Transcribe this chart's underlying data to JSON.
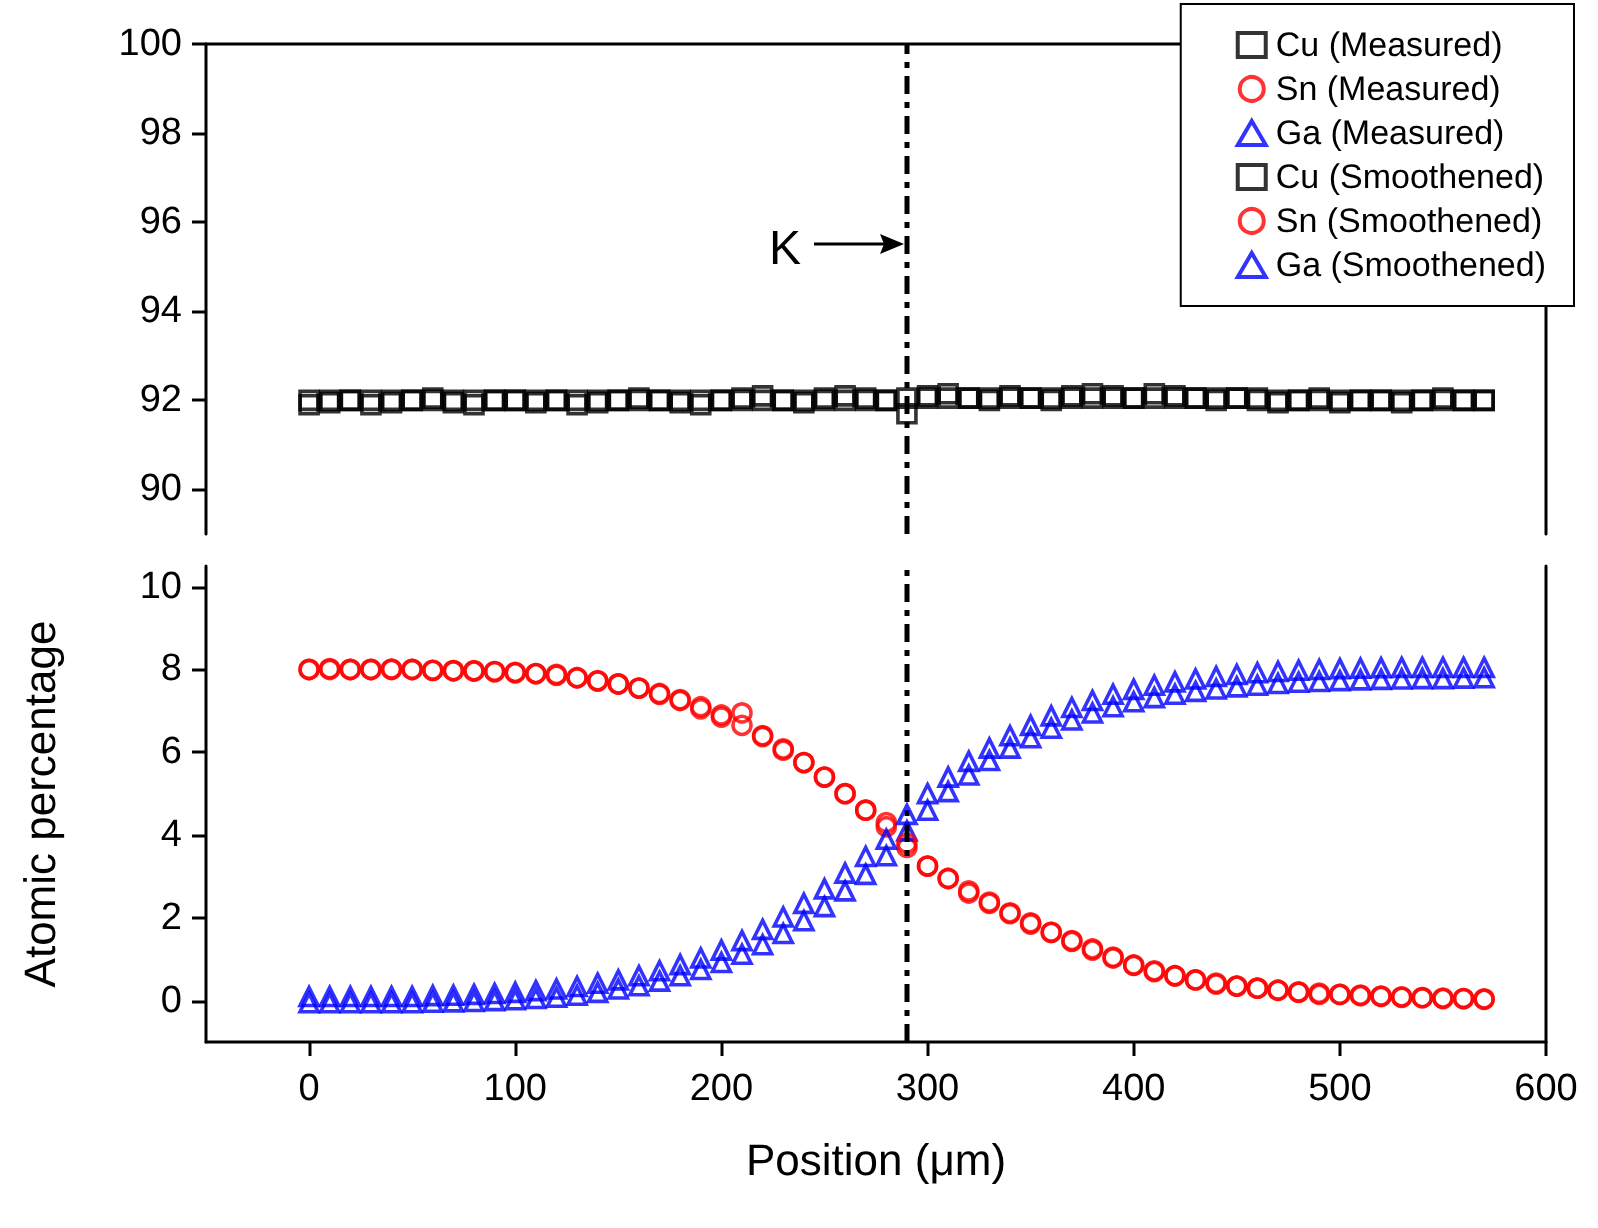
{
  "chart_data": [
    {
      "type": "scatter",
      "ylim": [
        89,
        100
      ],
      "yticks": [
        90,
        92,
        94,
        96,
        98,
        100
      ],
      "xlim": [
        -50,
        600
      ],
      "tick_labels": "y",
      "grid": false,
      "legend": "top right",
      "x": [
        0,
        10,
        20,
        30,
        40,
        50,
        60,
        70,
        80,
        90,
        100,
        110,
        120,
        130,
        140,
        150,
        160,
        170,
        180,
        190,
        200,
        210,
        220,
        230,
        240,
        250,
        260,
        270,
        280,
        290,
        300,
        310,
        320,
        330,
        340,
        350,
        360,
        370,
        380,
        390,
        400,
        410,
        420,
        430,
        440,
        450,
        460,
        470,
        480,
        490,
        500,
        510,
        520,
        530,
        540,
        550,
        560,
        570
      ],
      "ref_lines": [
        {
          "axis": "x",
          "value": 290,
          "color": "#000000",
          "line_style": "dashed"
        }
      ],
      "annotations": [
        {
          "text": "K",
          "x": 290,
          "y": 95.5
        }
      ],
      "series": [
        {
          "name": "Cu (Measured)",
          "color": "#000000",
          "marker": "square",
          "values": [
            91.9,
            91.95,
            92.0,
            91.9,
            91.95,
            92.0,
            92.05,
            91.95,
            91.9,
            92.0,
            92.0,
            91.95,
            92.0,
            91.9,
            91.95,
            92.0,
            92.05,
            92.0,
            91.95,
            91.9,
            92.0,
            92.05,
            92.1,
            92.0,
            91.95,
            92.05,
            92.1,
            92.05,
            92.0,
            91.7,
            92.1,
            92.15,
            92.05,
            92.0,
            92.1,
            92.05,
            92.0,
            92.1,
            92.15,
            92.1,
            92.05,
            92.15,
            92.1,
            92.05,
            92.0,
            92.05,
            92.0,
            91.95,
            92.0,
            92.05,
            91.95,
            92.0,
            92.0,
            91.95,
            92.0,
            92.05,
            92.0,
            92.0
          ]
        },
        {
          "name": "Sn (Measured)",
          "color": "#ff0000",
          "marker": "circle",
          "values": [
            null,
            null,
            null,
            null,
            null,
            null,
            null,
            null,
            null,
            null,
            null,
            null,
            null,
            null,
            null,
            null,
            null,
            null,
            null,
            null,
            null,
            null,
            null,
            null,
            null,
            null,
            null,
            null,
            null,
            null,
            null,
            null,
            null,
            null,
            null,
            null,
            null,
            null,
            null,
            null,
            null,
            null,
            null,
            null,
            null,
            null,
            null,
            null,
            null,
            null,
            null,
            null,
            null,
            null,
            null,
            null,
            null,
            null
          ]
        },
        {
          "name": "Ga (Measured)",
          "color": "#0000ff",
          "marker": "triangle",
          "values": [
            null,
            null,
            null,
            null,
            null,
            null,
            null,
            null,
            null,
            null,
            null,
            null,
            null,
            null,
            null,
            null,
            null,
            null,
            null,
            null,
            null,
            null,
            null,
            null,
            null,
            null,
            null,
            null,
            null,
            null,
            null,
            null,
            null,
            null,
            null,
            null,
            null,
            null,
            null,
            null,
            null,
            null,
            null,
            null,
            null,
            null,
            null,
            null,
            null,
            null,
            null,
            null,
            null,
            null,
            null,
            null,
            null,
            null
          ]
        },
        {
          "name": "Cu (Smoothened)",
          "color": "#000000",
          "marker": "square",
          "values": [
            92.0,
            92.0,
            92.0,
            92.0,
            92.0,
            92.0,
            92.0,
            92.0,
            92.0,
            92.0,
            92.0,
            92.0,
            92.0,
            92.0,
            92.0,
            92.0,
            92.0,
            92.0,
            92.0,
            92.0,
            92.0,
            92.0,
            92.0,
            92.0,
            92.0,
            92.0,
            92.0,
            92.0,
            92.0,
            92.05,
            92.05,
            92.05,
            92.05,
            92.05,
            92.05,
            92.05,
            92.05,
            92.05,
            92.05,
            92.05,
            92.05,
            92.05,
            92.05,
            92.05,
            92.05,
            92.05,
            92.05,
            92.0,
            92.0,
            92.0,
            92.0,
            92.0,
            92.0,
            92.0,
            92.0,
            92.0,
            92.0,
            92.0
          ]
        },
        {
          "name": "Sn (Smoothened)",
          "color": "#ff0000",
          "marker": "circle",
          "values": [
            null,
            null,
            null,
            null,
            null,
            null,
            null,
            null,
            null,
            null,
            null,
            null,
            null,
            null,
            null,
            null,
            null,
            null,
            null,
            null,
            null,
            null,
            null,
            null,
            null,
            null,
            null,
            null,
            null,
            null,
            null,
            null,
            null,
            null,
            null,
            null,
            null,
            null,
            null,
            null,
            null,
            null,
            null,
            null,
            null,
            null,
            null,
            null,
            null,
            null,
            null,
            null,
            null,
            null,
            null,
            null,
            null,
            null
          ]
        },
        {
          "name": "Ga (Smoothened)",
          "color": "#0000ff",
          "marker": "triangle",
          "values": [
            null,
            null,
            null,
            null,
            null,
            null,
            null,
            null,
            null,
            null,
            null,
            null,
            null,
            null,
            null,
            null,
            null,
            null,
            null,
            null,
            null,
            null,
            null,
            null,
            null,
            null,
            null,
            null,
            null,
            null,
            null,
            null,
            null,
            null,
            null,
            null,
            null,
            null,
            null,
            null,
            null,
            null,
            null,
            null,
            null,
            null,
            null,
            null,
            null,
            null,
            null,
            null,
            null,
            null,
            null,
            null,
            null,
            null
          ]
        }
      ]
    },
    {
      "type": "scatter",
      "ylim": [
        -1,
        10.5
      ],
      "yticks": [
        0,
        2,
        4,
        6,
        8,
        10
      ],
      "xlim": [
        -50,
        600
      ],
      "xticks": [
        0,
        100,
        200,
        300,
        400,
        500,
        600
      ],
      "grid": false,
      "legend": false,
      "xlabel": "Position (μm)",
      "ylabel": "Atomic percentage",
      "x": [
        0,
        10,
        20,
        30,
        40,
        50,
        60,
        70,
        80,
        90,
        100,
        110,
        120,
        130,
        140,
        150,
        160,
        170,
        180,
        190,
        200,
        210,
        220,
        230,
        240,
        250,
        260,
        270,
        280,
        290,
        300,
        310,
        320,
        330,
        340,
        350,
        360,
        370,
        380,
        390,
        400,
        410,
        420,
        430,
        440,
        450,
        460,
        470,
        480,
        490,
        500,
        510,
        520,
        530,
        540,
        550,
        560,
        570
      ],
      "ref_lines": [
        {
          "axis": "x",
          "value": 290,
          "color": "#000000",
          "line_style": "dashed"
        }
      ],
      "series": [
        {
          "color": "#ff0000",
          "marker": "circle",
          "values": [
            8.0,
            8.02,
            8.0,
            8.0,
            8.01,
            8.0,
            7.98,
            7.97,
            7.97,
            7.95,
            7.92,
            7.9,
            7.88,
            7.8,
            7.72,
            7.65,
            7.55,
            7.4,
            7.25,
            7.05,
            6.85,
            6.95,
            6.4,
            6.05,
            5.75,
            5.4,
            5.0,
            4.6,
            4.3,
            3.7,
            3.25,
            2.95,
            2.6,
            2.35,
            2.1,
            1.85,
            1.65,
            1.45,
            1.25,
            1.05,
            0.85,
            0.7,
            0.6,
            0.5,
            0.4,
            0.35,
            0.3,
            0.25,
            0.2,
            0.15,
            0.15,
            0.12,
            0.1,
            0.08,
            0.07,
            0.05,
            0.05,
            0.03
          ]
        },
        {
          "color": "#0000ff",
          "marker": "triangle",
          "values": [
            -0.05,
            -0.05,
            -0.05,
            -0.05,
            -0.05,
            -0.05,
            -0.04,
            -0.03,
            -0.02,
            0.0,
            0.02,
            0.05,
            0.08,
            0.13,
            0.2,
            0.28,
            0.36,
            0.47,
            0.6,
            0.75,
            0.92,
            1.12,
            1.35,
            1.62,
            1.93,
            2.27,
            2.65,
            3.05,
            3.5,
            4.1,
            4.6,
            5.05,
            5.45,
            5.8,
            6.1,
            6.35,
            6.58,
            6.78,
            6.95,
            7.1,
            7.22,
            7.32,
            7.4,
            7.47,
            7.53,
            7.58,
            7.62,
            7.66,
            7.69,
            7.71,
            7.73,
            7.75,
            7.76,
            7.77,
            7.78,
            7.78,
            7.79,
            7.8
          ]
        },
        {
          "color": "#ff0000",
          "marker": "circle",
          "values": [
            8.0,
            8.0,
            8.0,
            8.0,
            8.0,
            8.0,
            7.98,
            7.97,
            7.96,
            7.95,
            7.93,
            7.9,
            7.86,
            7.8,
            7.73,
            7.65,
            7.55,
            7.42,
            7.27,
            7.1,
            6.9,
            6.65,
            6.38,
            6.08,
            5.75,
            5.4,
            5.0,
            4.6,
            4.2,
            3.8,
            3.25,
            2.95,
            2.65,
            2.38,
            2.12,
            1.88,
            1.65,
            1.43,
            1.22,
            1.03,
            0.86,
            0.72,
            0.6,
            0.5,
            0.42,
            0.35,
            0.3,
            0.25,
            0.21,
            0.18,
            0.15,
            0.13,
            0.11,
            0.09,
            0.07,
            0.06,
            0.05,
            0.04
          ]
        },
        {
          "color": "#0000ff",
          "marker": "triangle",
          "values": [
            0.1,
            0.1,
            0.1,
            0.1,
            0.1,
            0.1,
            0.12,
            0.13,
            0.15,
            0.17,
            0.2,
            0.24,
            0.28,
            0.34,
            0.42,
            0.5,
            0.6,
            0.72,
            0.87,
            1.03,
            1.22,
            1.45,
            1.72,
            2.02,
            2.35,
            2.7,
            3.08,
            3.48,
            3.9,
            4.5,
            5.0,
            5.4,
            5.78,
            6.1,
            6.4,
            6.65,
            6.88,
            7.08,
            7.25,
            7.4,
            7.52,
            7.62,
            7.7,
            7.77,
            7.83,
            7.88,
            7.92,
            7.95,
            7.98,
            8.0,
            8.02,
            8.03,
            8.04,
            8.05,
            8.05,
            8.05,
            8.05,
            8.05
          ]
        }
      ]
    }
  ]
}
